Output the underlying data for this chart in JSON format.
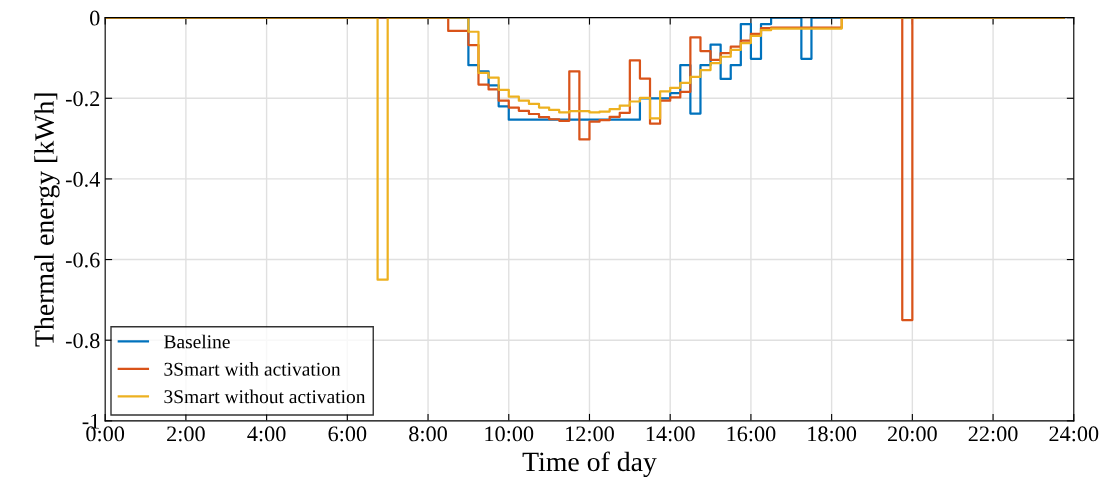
{
  "chart_data": {
    "type": "step",
    "xlabel": "Time of day",
    "ylabel": "Thermal energy [kWh]",
    "xlim": [
      0,
      24
    ],
    "xticks": [
      {
        "value": 0,
        "label": "0:00"
      },
      {
        "value": 2,
        "label": "2:00"
      },
      {
        "value": 4,
        "label": "4:00"
      },
      {
        "value": 6,
        "label": "6:00"
      },
      {
        "value": 8,
        "label": "8:00"
      },
      {
        "value": 10,
        "label": "10:00"
      },
      {
        "value": 12,
        "label": "12:00"
      },
      {
        "value": 14,
        "label": "14:00"
      },
      {
        "value": 16,
        "label": "16:00"
      },
      {
        "value": 18,
        "label": "18:00"
      },
      {
        "value": 20,
        "label": "20:00"
      },
      {
        "value": 22,
        "label": "22:00"
      },
      {
        "value": 24,
        "label": "24:00"
      }
    ],
    "ylim": [
      -1,
      0
    ],
    "yticks": [
      -1,
      -0.8,
      -0.6,
      -0.4,
      -0.2,
      0
    ],
    "grid": true,
    "legend": "bottom left",
    "series": [
      {
        "name": "Baseline",
        "color": "#0072bd",
        "x": [
          0,
          9,
          9.25,
          9.5,
          9.75,
          10,
          13.25,
          14,
          14.25,
          14.5,
          14.75,
          15,
          15.25,
          15.5,
          15.75,
          16,
          16.25,
          16.5,
          17.25,
          17.5,
          23.75
        ],
        "values": [
          0,
          -0.118,
          -0.133,
          -0.168,
          -0.22,
          -0.253,
          -0.2,
          -0.187,
          -0.118,
          -0.238,
          -0.118,
          -0.067,
          -0.152,
          -0.118,
          -0.016,
          -0.102,
          -0.016,
          0,
          -0.102,
          0,
          0
        ]
      },
      {
        "name": "3Smart with activation",
        "color": "#d95319",
        "x": [
          0,
          8.5,
          9,
          9.25,
          9.5,
          9.75,
          10,
          10.25,
          10.5,
          10.75,
          11,
          11.25,
          11.5,
          11.75,
          12,
          12.25,
          12.5,
          12.75,
          13,
          13.25,
          13.5,
          13.75,
          14,
          14.25,
          14.5,
          14.75,
          15,
          15.25,
          15.5,
          15.75,
          16,
          16.25,
          16.5,
          18.25,
          19.75,
          20,
          23.75
        ],
        "values": [
          0,
          -0.033,
          -0.068,
          -0.166,
          -0.178,
          -0.206,
          -0.223,
          -0.231,
          -0.239,
          -0.247,
          -0.252,
          -0.256,
          -0.133,
          -0.302,
          -0.258,
          -0.254,
          -0.246,
          -0.236,
          -0.106,
          -0.151,
          -0.263,
          -0.206,
          -0.198,
          -0.184,
          -0.049,
          -0.083,
          -0.105,
          -0.088,
          -0.072,
          -0.057,
          -0.04,
          -0.026,
          -0.025,
          0,
          -0.75,
          0,
          0
        ]
      },
      {
        "name": "3Smart without activation",
        "color": "#edb120",
        "x": [
          0,
          6.75,
          7,
          9,
          9.25,
          9.5,
          9.75,
          10,
          10.25,
          10.5,
          10.75,
          11,
          11.25,
          11.5,
          11.75,
          12,
          12.25,
          12.5,
          12.75,
          13,
          13.25,
          13.5,
          13.75,
          14,
          14.25,
          14.5,
          14.75,
          15,
          15.25,
          15.5,
          15.75,
          16,
          16.25,
          16.5,
          18.25,
          23.75
        ],
        "values": [
          0,
          -0.65,
          0,
          -0.035,
          -0.137,
          -0.149,
          -0.179,
          -0.196,
          -0.206,
          -0.214,
          -0.223,
          -0.229,
          -0.235,
          -0.232,
          -0.232,
          -0.235,
          -0.233,
          -0.227,
          -0.218,
          -0.208,
          -0.199,
          -0.25,
          -0.183,
          -0.174,
          -0.162,
          -0.147,
          -0.13,
          -0.113,
          -0.097,
          -0.08,
          -0.063,
          -0.045,
          -0.031,
          -0.027,
          0,
          0
        ]
      }
    ]
  }
}
